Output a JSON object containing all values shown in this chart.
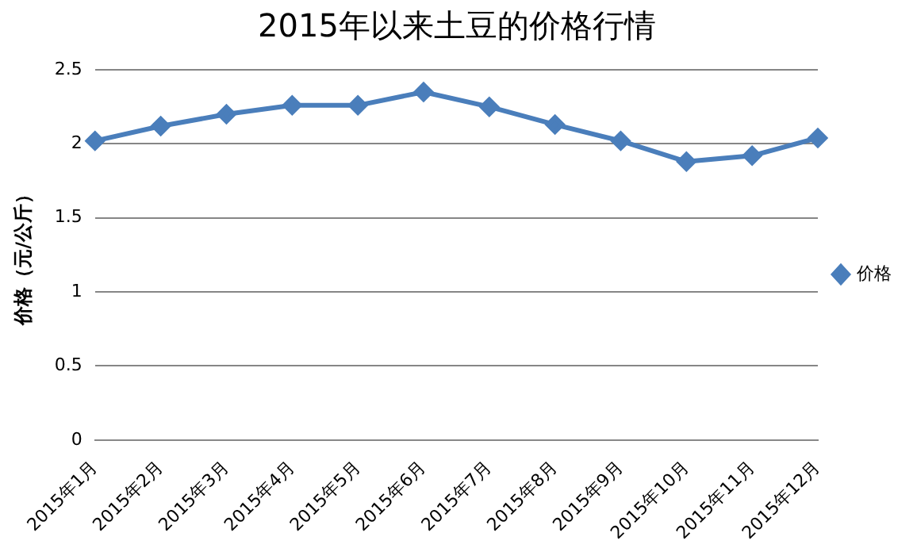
{
  "chart_data": {
    "type": "line",
    "title": "2015年以来土豆的价格行情",
    "ylabel": "价格（元/公斤）",
    "categories": [
      "2015年1月",
      "2015年2月",
      "2015年3月",
      "2015年4月",
      "2015年5月",
      "2015年6月",
      "2015年7月",
      "2015年8月",
      "2015年9月",
      "2015年10月",
      "2015年11月",
      "2015年12月"
    ],
    "series": [
      {
        "name": "价格",
        "color": "#4a7ebb",
        "values": [
          2.02,
          2.12,
          2.2,
          2.26,
          2.26,
          2.35,
          2.25,
          2.13,
          2.02,
          1.88,
          1.92,
          2.04
        ]
      }
    ],
    "ylim": [
      0,
      2.5
    ],
    "yticks": [
      0,
      0.5,
      1,
      1.5,
      2,
      2.5
    ],
    "grid": "y",
    "legend": "right",
    "marker": "diamond",
    "line_style": "solid"
  }
}
